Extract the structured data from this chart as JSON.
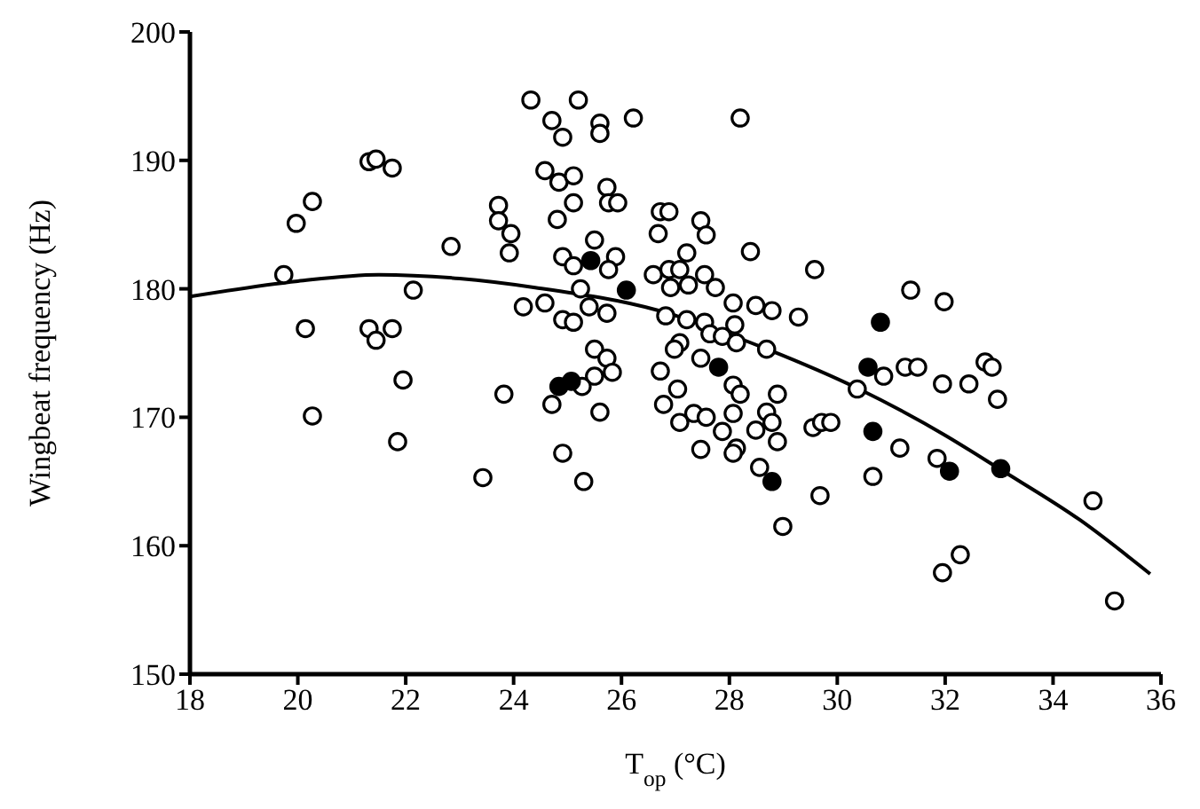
{
  "chart_data": {
    "type": "scatter",
    "xlabel": "T$_{op}$ (°C)",
    "ylabel": "Wingbeat frequency (Hz)",
    "xlim": [
      18,
      36
    ],
    "xticks": [
      18,
      20,
      22,
      24,
      26,
      28,
      30,
      32,
      34,
      36
    ],
    "ylim": [
      150,
      200
    ],
    "yticks": [
      150,
      160,
      170,
      180,
      190,
      200
    ],
    "marker": "circle",
    "series": [
      {
        "color": "#ffffff",
        "x": [
          24.32,
          21.32,
          21.45,
          21.75,
          20.27,
          19.97,
          23.72,
          23.72,
          23.95,
          23.92,
          22.84,
          19.74,
          22.14,
          24.18,
          20.14,
          21.32,
          21.75,
          21.45,
          21.95,
          23.82,
          20.27,
          21.85,
          23.43,
          29.58,
          31.36,
          31.98,
          28.49,
          28.79,
          29.28,
          28.69,
          30.86,
          31.26,
          31.49,
          30.37,
          31.95,
          32.44,
          32.74,
          32.87,
          32.97,
          28.89,
          28.69,
          28.49,
          29.55,
          29.71,
          29.88,
          28.89,
          28.56,
          31.16,
          31.85,
          30.66,
          29.68,
          28.99,
          32.28,
          31.95,
          34.74,
          35.14,
          25.2,
          24.71,
          24.91,
          25.6,
          25.6,
          26.22,
          28.2,
          24.58,
          24.84,
          25.11,
          25.11,
          24.81,
          25.73,
          25.76,
          25.93,
          26.72,
          26.88,
          26.68,
          27.47,
          27.57,
          28.39,
          24.91,
          25.5,
          25.89,
          25.76,
          25.11,
          25.24,
          24.58,
          24.91,
          25.11,
          25.4,
          25.73,
          26.59,
          26.88,
          27.21,
          27.08,
          27.24,
          26.91,
          27.54,
          27.74,
          26.82,
          27.21,
          27.54,
          27.64,
          27.87,
          28.1,
          28.07,
          28.13,
          27.08,
          26.98,
          27.47,
          25.5,
          25.73,
          25.83,
          25.5,
          25.27,
          26.72,
          28.07,
          28.2,
          27.04,
          26.78,
          25.6,
          24.71,
          27.34,
          27.57,
          27.08,
          28.07,
          27.87,
          28.13,
          28.07,
          27.47,
          24.91,
          25.3,
          28.79
        ],
        "values": [
          194.7,
          189.9,
          190.1,
          189.4,
          186.8,
          185.1,
          186.5,
          185.3,
          184.3,
          182.8,
          183.3,
          181.1,
          179.9,
          178.6,
          176.9,
          176.9,
          176.9,
          176.0,
          172.9,
          171.8,
          170.1,
          168.1,
          165.3,
          181.5,
          179.9,
          179.0,
          178.7,
          178.3,
          177.8,
          175.3,
          173.2,
          173.9,
          173.9,
          172.2,
          172.6,
          172.6,
          174.3,
          173.9,
          171.4,
          171.8,
          170.4,
          169.0,
          169.2,
          169.6,
          169.6,
          168.1,
          166.1,
          167.6,
          166.8,
          165.4,
          163.9,
          161.5,
          159.3,
          157.9,
          163.5,
          155.7,
          194.7,
          193.1,
          191.8,
          192.9,
          192.1,
          193.3,
          193.3,
          189.2,
          188.3,
          188.8,
          186.7,
          185.4,
          187.9,
          186.7,
          186.7,
          186.0,
          186.0,
          184.3,
          185.3,
          184.2,
          182.9,
          182.5,
          183.8,
          182.5,
          181.5,
          181.8,
          180.0,
          178.9,
          177.6,
          177.4,
          178.6,
          178.1,
          181.1,
          181.5,
          182.8,
          181.5,
          180.3,
          180.1,
          181.1,
          180.1,
          177.9,
          177.6,
          177.4,
          176.5,
          176.3,
          177.2,
          178.9,
          175.8,
          175.8,
          175.3,
          174.6,
          175.3,
          174.6,
          173.5,
          173.2,
          172.4,
          173.6,
          172.5,
          171.8,
          172.2,
          171.0,
          170.4,
          171.0,
          170.3,
          170.0,
          169.6,
          170.3,
          168.9,
          167.6,
          167.2,
          167.5,
          167.2,
          165.0,
          169.6
        ]
      },
      {
        "color": "#000000",
        "x": [
          30.8,
          30.57,
          30.66,
          32.08,
          33.03,
          28.79,
          25.43,
          26.09,
          27.8,
          24.84,
          25.07
        ],
        "values": [
          177.4,
          173.9,
          168.9,
          165.8,
          166.0,
          165.0,
          182.2,
          179.9,
          173.9,
          172.4,
          172.8
        ]
      },
      {
        "type": "line",
        "marker": "none",
        "color": "#000000",
        "x": [
          18,
          20,
          21.5,
          23,
          24.4,
          26.7,
          28.7,
          30.4,
          32,
          33,
          34.5,
          35.8
        ],
        "values": [
          179.4,
          180.6,
          181.1,
          180.8,
          180.1,
          178.3,
          175.3,
          172.2,
          168.6,
          166.0,
          162.0,
          157.8
        ]
      }
    ]
  }
}
